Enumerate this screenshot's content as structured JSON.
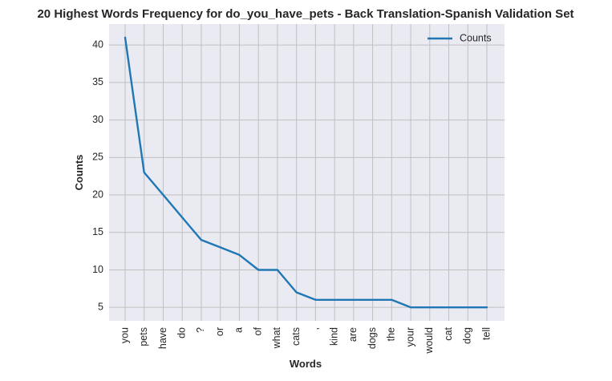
{
  "chart_data": {
    "type": "line",
    "title": "20 Highest Words Frequency for do_you_have_pets - Back Translation-Spanish Validation Set",
    "xlabel": "Words",
    "ylabel": "Counts",
    "categories": [
      "you",
      "pets",
      "have",
      "do",
      "?",
      "or",
      "a",
      "of",
      "what",
      "cats",
      ",",
      "kind",
      "are",
      "dogs",
      "the",
      "your",
      "would",
      "cat",
      "dog",
      "tell"
    ],
    "series": [
      {
        "name": "Counts",
        "values": [
          41,
          23,
          20,
          17,
          14,
          13,
          12,
          10,
          10,
          7,
          6,
          6,
          6,
          6,
          6,
          5,
          5,
          5,
          5,
          5
        ]
      }
    ],
    "yticks": [
      5,
      10,
      15,
      20,
      25,
      30,
      35,
      40
    ],
    "ylim": [
      3.2,
      42.8
    ],
    "grid": true,
    "legend_position": "top-right",
    "colors": {
      "line": "#1f77b4",
      "plot_bg": "#eaeaf2",
      "grid": "#c0c0c0"
    }
  }
}
